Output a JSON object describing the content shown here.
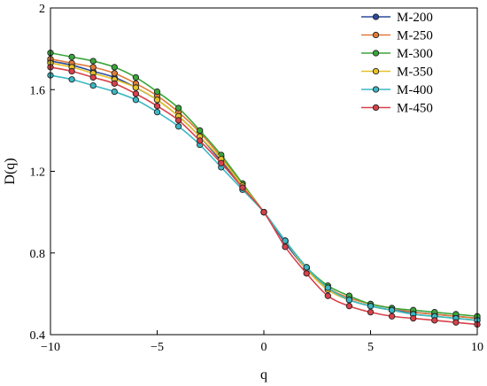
{
  "chart_data": {
    "type": "line",
    "xlabel": "q",
    "ylabel": "D(q)",
    "xlim": [
      -10,
      10
    ],
    "ylim": [
      0.4,
      2.0
    ],
    "x_ticks": [
      "-10",
      "-5",
      "0",
      "5",
      "10"
    ],
    "y_ticks": [
      "0.4",
      "0.8",
      "1.2",
      "1.6",
      "2"
    ],
    "x": [
      -10,
      -9,
      -8,
      -7,
      -6,
      -5,
      -4,
      -3,
      -2,
      -1,
      0,
      1,
      2,
      3,
      4,
      5,
      6,
      7,
      8,
      9,
      10
    ],
    "legend_position": "top-right",
    "grid": false,
    "series": [
      {
        "name": "M-200",
        "color": "#2b4c9b",
        "values": [
          1.74,
          1.72,
          1.69,
          1.66,
          1.61,
          1.55,
          1.47,
          1.37,
          1.25,
          1.13,
          1.0,
          0.85,
          0.72,
          0.62,
          0.57,
          0.54,
          0.52,
          0.51,
          0.5,
          0.49,
          0.48
        ]
      },
      {
        "name": "M-250",
        "color": "#e07b39",
        "values": [
          1.75,
          1.73,
          1.71,
          1.68,
          1.63,
          1.57,
          1.49,
          1.39,
          1.27,
          1.14,
          1.0,
          0.86,
          0.73,
          0.63,
          0.58,
          0.55,
          0.53,
          0.51,
          0.5,
          0.49,
          0.48
        ]
      },
      {
        "name": "M-300",
        "color": "#3aa63a",
        "values": [
          1.78,
          1.76,
          1.74,
          1.71,
          1.66,
          1.59,
          1.51,
          1.4,
          1.28,
          1.14,
          1.0,
          0.86,
          0.73,
          0.64,
          0.59,
          0.55,
          0.53,
          0.52,
          0.51,
          0.5,
          0.49
        ]
      },
      {
        "name": "M-350",
        "color": "#e6c229",
        "values": [
          1.73,
          1.71,
          1.68,
          1.65,
          1.61,
          1.55,
          1.47,
          1.37,
          1.26,
          1.13,
          1.0,
          0.86,
          0.72,
          0.62,
          0.57,
          0.54,
          0.52,
          0.5,
          0.49,
          0.48,
          0.47
        ]
      },
      {
        "name": "M-400",
        "color": "#3ab8c4",
        "values": [
          1.67,
          1.65,
          1.62,
          1.59,
          1.55,
          1.49,
          1.42,
          1.33,
          1.22,
          1.11,
          1.0,
          0.86,
          0.73,
          0.63,
          0.57,
          0.54,
          0.52,
          0.5,
          0.49,
          0.48,
          0.47
        ]
      },
      {
        "name": "M-450",
        "color": "#d9414a",
        "values": [
          1.71,
          1.69,
          1.66,
          1.63,
          1.58,
          1.52,
          1.45,
          1.35,
          1.24,
          1.12,
          1.0,
          0.83,
          0.7,
          0.59,
          0.54,
          0.51,
          0.49,
          0.48,
          0.47,
          0.46,
          0.45
        ]
      }
    ]
  }
}
